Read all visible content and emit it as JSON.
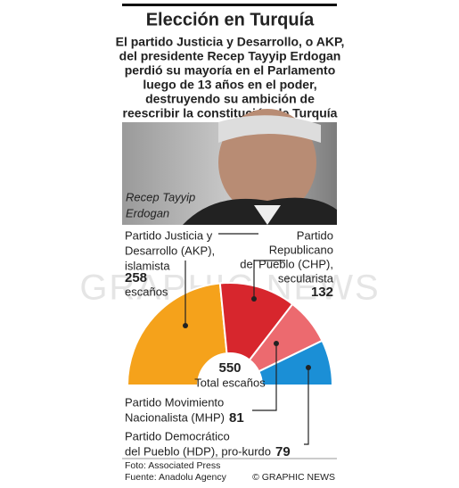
{
  "chart_data": {
    "type": "semicircle",
    "title": "Elección en Turquía",
    "subtitle": [
      "El partido Justicia y Desarrollo, o AKP,",
      "del presidente Recep Tayyip Erdogan",
      "perdió su mayoría en el Parlamento",
      "luego de 13 años en el poder,",
      "destruyendo su ambición de",
      "reescribir la constitución de Turquía"
    ],
    "photo_caption": [
      "Recep Tayyip",
      "Erdogan"
    ],
    "labels": [
      [
        "Partido Justicia y",
        "Desarrollo (AKP),",
        "islamista"
      ],
      [
        "Partido",
        "Republicano",
        "del Pueblo (CHP),",
        "secularista"
      ],
      [
        "Partido Movimiento",
        "Nacionalista (MHP)"
      ],
      [
        "Partido Democrático",
        "del Pueblo (HDP), pro-kurdo"
      ]
    ],
    "values": [
      258,
      132,
      81,
      79
    ],
    "colors": [
      "#f5a21b",
      "#d7262d",
      "#ec6a6f",
      "#1b8fd6"
    ],
    "seats_word": "escaños",
    "total": 550,
    "total_label": "Total escaños",
    "watermark": "GRAPHIC NEWS",
    "footer": {
      "photo": "Foto: Associated Press",
      "source": "Fuente: Anadolu Agency",
      "credit": "© GRAPHIC NEWS"
    }
  }
}
